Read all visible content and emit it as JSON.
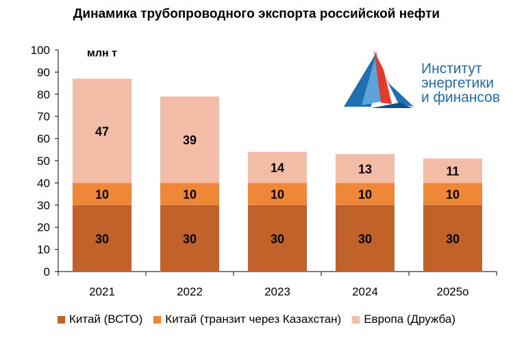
{
  "chart_data": {
    "type": "bar",
    "stacked": true,
    "title": "Динамика трубопроводного экспорта российской нефти",
    "unit_label": "млн т",
    "categories": [
      "2021",
      "2022",
      "2023",
      "2024",
      "2025о"
    ],
    "series": [
      {
        "name": "Китай (ВСТО)",
        "color": "#c0622a",
        "values": [
          30,
          30,
          30,
          30,
          30
        ]
      },
      {
        "name": "Китай (транзит через Казахстан)",
        "color": "#ee8738",
        "values": [
          10,
          10,
          10,
          10,
          10
        ]
      },
      {
        "name": "Европа (Дружба)",
        "color": "#f3bca6",
        "values": [
          47,
          39,
          14,
          13,
          11
        ]
      }
    ],
    "ylim": [
      0,
      100
    ],
    "yticks": [
      0,
      10,
      20,
      30,
      40,
      50,
      60,
      70,
      80,
      90,
      100
    ],
    "grid": false,
    "legend_position": "bottom"
  },
  "logo": {
    "line1": "Институт",
    "line2": "энергетики",
    "line3": "и финансов"
  }
}
